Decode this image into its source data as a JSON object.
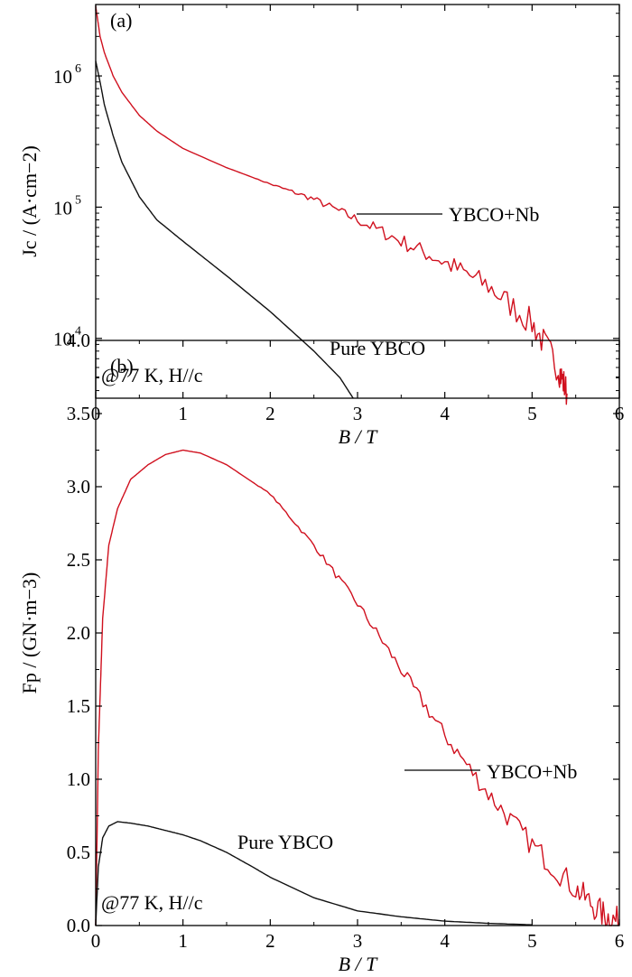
{
  "chart_data": [
    {
      "type": "line",
      "panel_label": "(a)",
      "title": "",
      "xlabel": "B / T",
      "ylabel": "Jc / (A·cm−2)",
      "xlim": [
        0,
        6
      ],
      "ylim": [
        3500,
        3500000
      ],
      "yscale": "log",
      "grid": false,
      "xticks": [
        0,
        1,
        2,
        3,
        4,
        5,
        6
      ],
      "xtick_labels": [
        "0",
        "1",
        "2",
        "3",
        "4",
        "5",
        "6"
      ],
      "yticks": [
        10000,
        100000,
        1000000
      ],
      "ytick_labels": [
        "10",
        "10",
        "10"
      ],
      "ytick_exponents": [
        "4",
        "5",
        "6"
      ],
      "annotation": "@77 K, H//c",
      "series": [
        {
          "name": "YBCO+Nb",
          "color": "#d0101e",
          "x": [
            0,
            0.05,
            0.1,
            0.2,
            0.3,
            0.5,
            0.7,
            1.0,
            1.5,
            2.0,
            2.5,
            3.0,
            3.5,
            4.0,
            4.5,
            5.0,
            5.3,
            5.4
          ],
          "y": [
            3400000,
            2000000,
            1500000,
            1000000,
            750000,
            500000,
            380000,
            280000,
            200000,
            150000,
            115000,
            80000,
            55000,
            38000,
            25000,
            13000,
            6000,
            3800
          ]
        },
        {
          "name": "Pure YBCO",
          "color": "#111111",
          "x": [
            0,
            0.05,
            0.1,
            0.2,
            0.3,
            0.5,
            0.7,
            1.0,
            1.5,
            2.0,
            2.5,
            2.8,
            2.95
          ],
          "y": [
            1300000,
            900000,
            600000,
            350000,
            220000,
            120000,
            80000,
            55000,
            30000,
            16000,
            8000,
            5000,
            3500
          ]
        }
      ],
      "labels": [
        "YBCO+Nb",
        "Pure YBCO"
      ]
    },
    {
      "type": "line",
      "panel_label": "(b)",
      "title": "",
      "xlabel": "B / T",
      "ylabel": "Fp / (GN·m−3)",
      "xlim": [
        0,
        6
      ],
      "ylim": [
        0,
        4
      ],
      "grid": false,
      "xticks": [
        0,
        1,
        2,
        3,
        4,
        5,
        6
      ],
      "xtick_labels": [
        "0",
        "1",
        "2",
        "3",
        "4",
        "5",
        "6"
      ],
      "yticks": [
        0,
        0.5,
        1.0,
        1.5,
        2.0,
        2.5,
        3.0,
        3.5,
        4.0
      ],
      "ytick_labels": [
        "0.0",
        "0.5",
        "1.0",
        "1.5",
        "2.0",
        "2.5",
        "3.0",
        "3.5",
        "4.0"
      ],
      "annotation": "@77 K, H//c",
      "series": [
        {
          "name": "YBCO+Nb",
          "color": "#d0101e",
          "x": [
            0,
            0.03,
            0.08,
            0.15,
            0.25,
            0.4,
            0.6,
            0.8,
            1.0,
            1.2,
            1.5,
            2.0,
            2.5,
            3.0,
            3.5,
            4.0,
            4.5,
            5.0,
            5.5,
            5.8,
            6.0
          ],
          "y": [
            0,
            1.2,
            2.1,
            2.6,
            2.85,
            3.05,
            3.15,
            3.22,
            3.25,
            3.23,
            3.15,
            2.95,
            2.6,
            2.2,
            1.75,
            1.3,
            0.9,
            0.55,
            0.25,
            0.08,
            0.02
          ]
        },
        {
          "name": "Pure YBCO",
          "color": "#111111",
          "x": [
            0,
            0.03,
            0.08,
            0.15,
            0.25,
            0.4,
            0.6,
            0.8,
            1.0,
            1.2,
            1.5,
            1.8,
            2.0,
            2.5,
            3.0,
            3.5,
            4.0,
            4.5,
            5.0
          ],
          "y": [
            0,
            0.4,
            0.6,
            0.68,
            0.71,
            0.7,
            0.68,
            0.65,
            0.62,
            0.58,
            0.5,
            0.4,
            0.33,
            0.19,
            0.1,
            0.06,
            0.03,
            0.015,
            0.005
          ]
        }
      ],
      "labels": [
        "YBCO+Nb",
        "Pure YBCO"
      ]
    }
  ]
}
